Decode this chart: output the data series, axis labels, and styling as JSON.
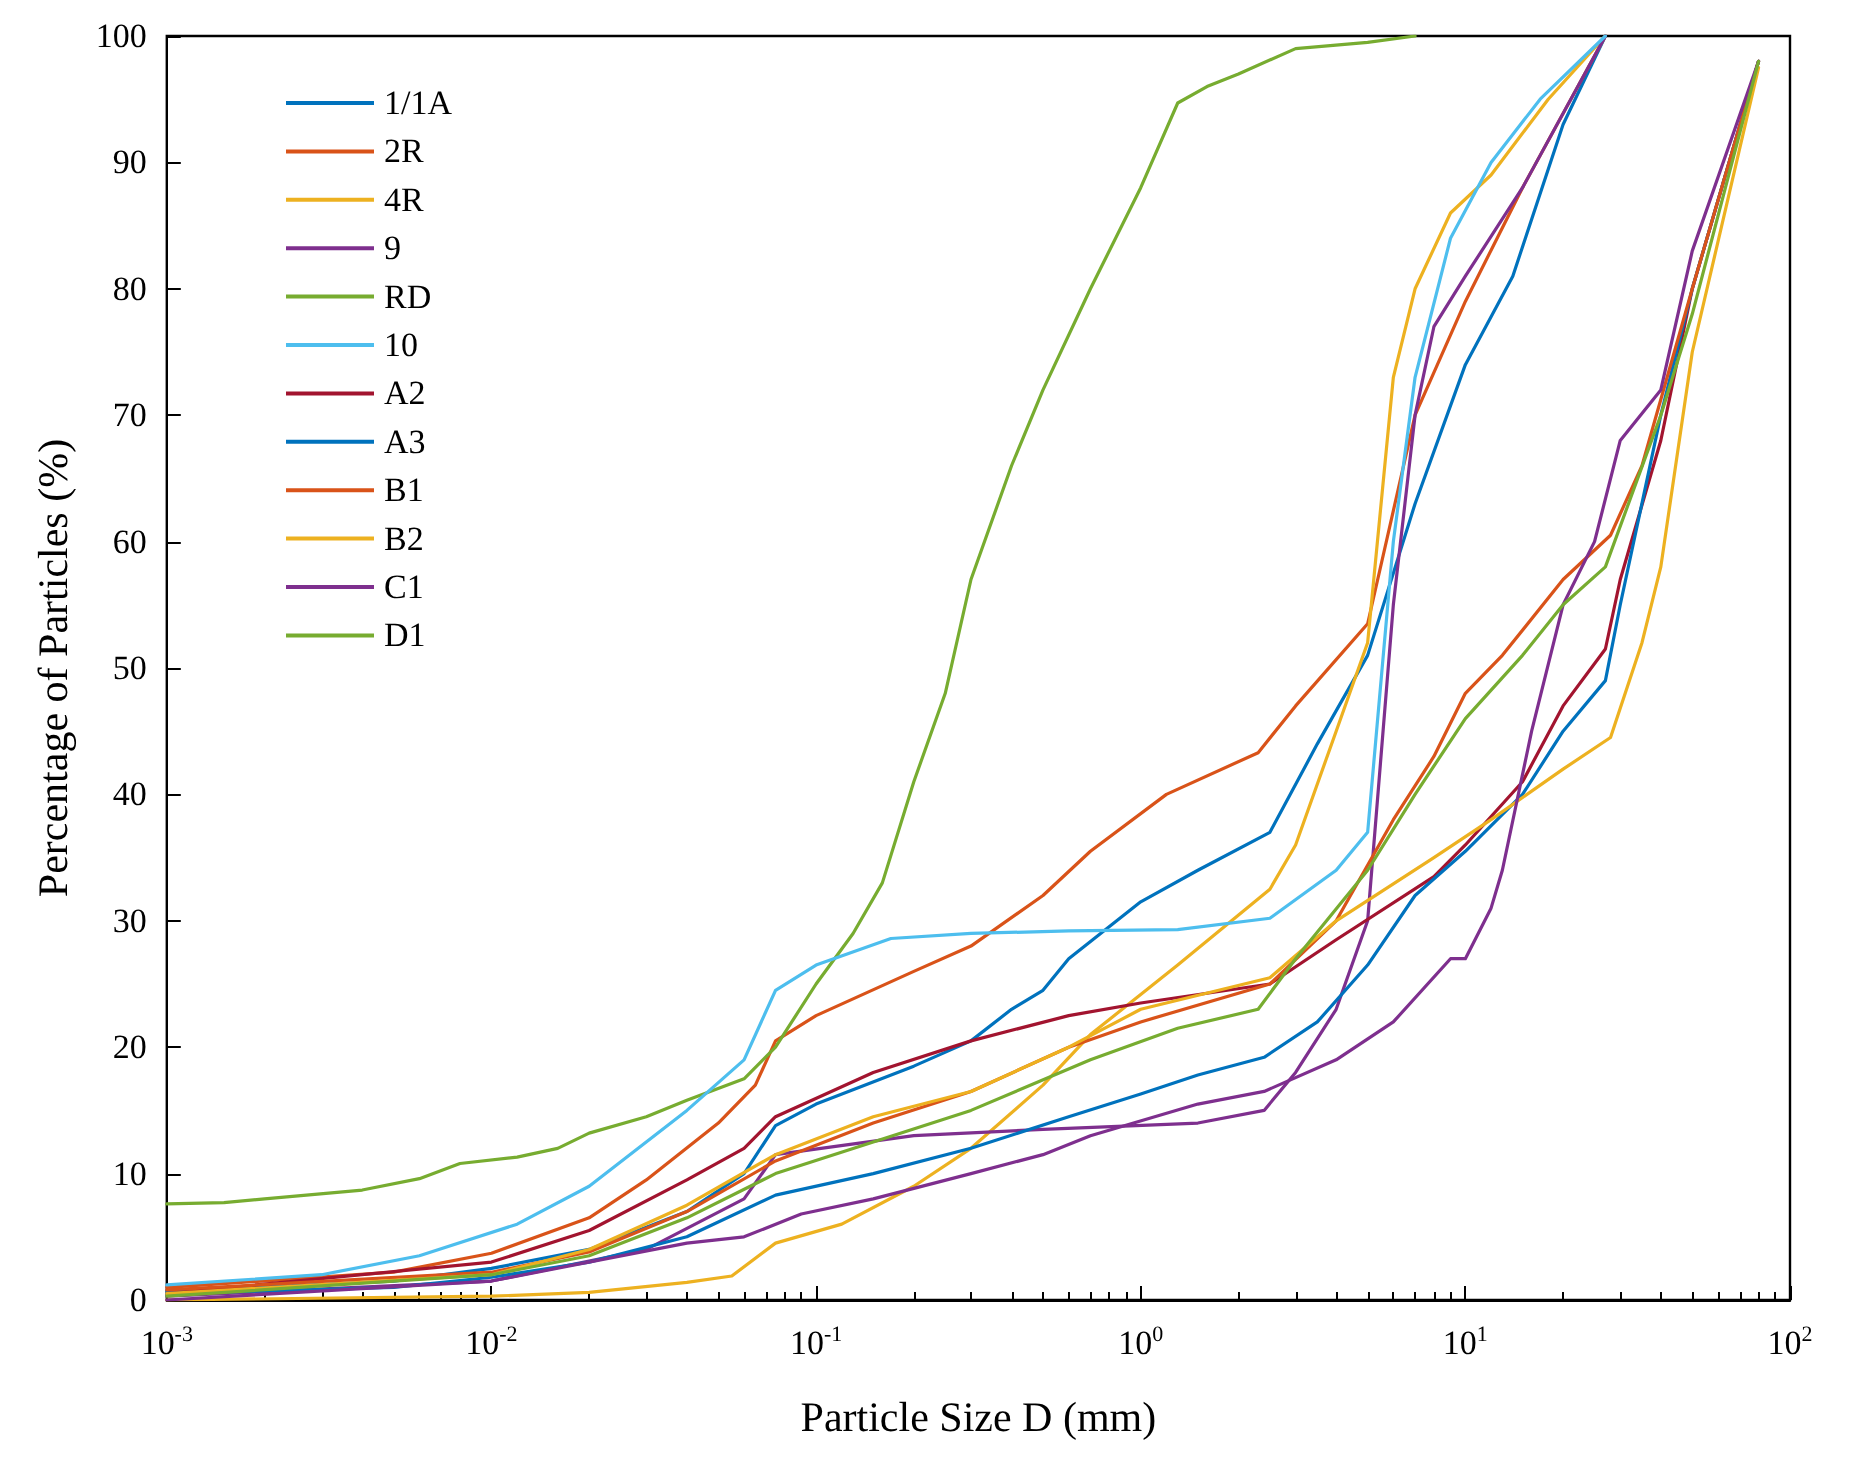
{
  "chart_data": {
    "type": "line",
    "xlabel": "Particle Size D (mm)",
    "ylabel": "Percentage of Particles (%)",
    "log": "x",
    "grid": false,
    "legend": "top left",
    "marker": "none",
    "line_style": "solid",
    "xlim": [
      0.001,
      100
    ],
    "ylim": [
      0,
      100
    ],
    "xticks": [
      {
        "value": 0.001,
        "label": "10$^{-3}$"
      },
      {
        "value": 0.01,
        "label": "10$^{-2}$"
      },
      {
        "value": 0.1,
        "label": "10$^{-1}$"
      },
      {
        "value": 1,
        "label": "10$^{0}$"
      },
      {
        "value": 10,
        "label": "10$^{1}$"
      },
      {
        "value": 100,
        "label": "10$^{2}$"
      }
    ],
    "yticks": [
      0,
      10,
      20,
      30,
      40,
      50,
      60,
      70,
      80,
      90,
      100
    ],
    "series": [
      {
        "name": "1/1A",
        "color": "#0072bd",
        "x": [
          0.001,
          0.005,
          0.01,
          0.02,
          0.04,
          0.06,
          0.075,
          0.1,
          0.2,
          0.3,
          0.4,
          0.5,
          0.6,
          1,
          1.5,
          2.5,
          3.5,
          5,
          7,
          10,
          14,
          20,
          27
        ],
        "values": [
          0.7,
          1.5,
          2.5,
          4,
          7,
          10,
          13.8,
          15.5,
          18.5,
          20.5,
          23,
          24.5,
          27,
          31.5,
          34,
          37,
          44,
          51,
          63,
          74,
          81,
          93,
          100
        ]
      },
      {
        "name": "2R",
        "color": "#d95319",
        "x": [
          0.001,
          0.005,
          0.01,
          0.02,
          0.03,
          0.05,
          0.065,
          0.075,
          0.1,
          0.2,
          0.3,
          0.5,
          0.7,
          1.2,
          2.3,
          3,
          5,
          7,
          10,
          15,
          27
        ],
        "values": [
          1,
          2.2,
          3.7,
          6.5,
          9.5,
          14,
          17,
          20.5,
          22.5,
          26,
          28,
          32,
          35.5,
          40,
          43.3,
          47,
          53.5,
          70,
          79,
          88,
          100
        ]
      },
      {
        "name": "4R",
        "color": "#edb120",
        "x": [
          0.001,
          0.01,
          0.02,
          0.04,
          0.055,
          0.075,
          0.12,
          0.2,
          0.3,
          0.5,
          0.7,
          1.3,
          2.5,
          3,
          4,
          5,
          6,
          7,
          9,
          12,
          18,
          27
        ],
        "values": [
          0,
          0.3,
          0.6,
          1.4,
          1.9,
          4.5,
          6,
          9,
          12,
          17,
          21,
          26.5,
          32.5,
          36,
          45,
          52,
          73,
          80,
          86,
          89,
          95,
          100
        ]
      },
      {
        "name": "9",
        "color": "#7e2f8e",
        "x": [
          0.001,
          0.01,
          0.03,
          0.06,
          0.075,
          0.2,
          0.5,
          1.5,
          2.4,
          3,
          4,
          5,
          6,
          7,
          8,
          10,
          15,
          27
        ],
        "values": [
          0.3,
          1.5,
          4,
          8,
          11.5,
          13,
          13.5,
          14,
          15,
          18,
          23,
          30,
          55,
          70,
          77,
          81,
          88,
          100
        ]
      },
      {
        "name": "RD",
        "color": "#77ac30",
        "x": [
          0.001,
          0.0015,
          0.002,
          0.004,
          0.006,
          0.008,
          0.012,
          0.016,
          0.02,
          0.03,
          0.04,
          0.06,
          0.075,
          0.1,
          0.13,
          0.16,
          0.2,
          0.25,
          0.3,
          0.4,
          0.5,
          0.7,
          1,
          1.3,
          1.6,
          2,
          3,
          5,
          7
        ],
        "values": [
          7.6,
          7.7,
          8,
          8.7,
          9.6,
          10.8,
          11.3,
          12,
          13.2,
          14.5,
          15.8,
          17.5,
          20,
          25,
          29,
          33,
          41,
          48,
          57,
          66,
          72,
          80,
          88,
          94.7,
          96,
          97,
          99,
          99.5,
          100
        ]
      },
      {
        "name": "10",
        "color": "#4dbeee",
        "x": [
          0.001,
          0.003,
          0.006,
          0.012,
          0.02,
          0.04,
          0.06,
          0.075,
          0.1,
          0.17,
          0.3,
          0.6,
          1.3,
          2.5,
          4,
          5,
          6,
          7,
          9,
          12,
          17,
          27
        ],
        "values": [
          1.2,
          2,
          3.5,
          6,
          9,
          15,
          19,
          24.5,
          26.5,
          28.6,
          29,
          29.2,
          29.3,
          30.2,
          34,
          37,
          60,
          73,
          84,
          90,
          95,
          100
        ]
      },
      {
        "name": "A2",
        "color": "#a2142f",
        "x": [
          0.001,
          0.01,
          0.02,
          0.04,
          0.06,
          0.075,
          0.15,
          0.3,
          0.6,
          1,
          2.5,
          4,
          8,
          10,
          15,
          20,
          27,
          30,
          40,
          50,
          80
        ],
        "values": [
          0.5,
          3,
          5.5,
          9.5,
          12,
          14.5,
          18,
          20.5,
          22.5,
          23.5,
          25,
          28.5,
          33.5,
          36,
          41,
          47,
          51.5,
          57,
          68,
          80,
          98
        ]
      },
      {
        "name": "A3",
        "color": "#0072bd",
        "x": [
          0.001,
          0.005,
          0.01,
          0.02,
          0.04,
          0.075,
          0.15,
          0.3,
          0.6,
          1,
          1.5,
          2.4,
          3.5,
          5,
          7,
          10,
          15,
          20,
          27,
          30,
          40,
          50,
          80
        ],
        "values": [
          0.5,
          1,
          1.8,
          3,
          5,
          8.3,
          10,
          12,
          14.5,
          16.3,
          17.8,
          19.2,
          22,
          26.5,
          32,
          35.5,
          40,
          45,
          49,
          55,
          70,
          80,
          98
        ]
      },
      {
        "name": "B1",
        "color": "#d95319",
        "x": [
          0.001,
          0.01,
          0.02,
          0.04,
          0.075,
          0.15,
          0.3,
          0.6,
          1,
          2.5,
          4,
          6,
          8,
          10,
          13,
          20,
          28,
          35,
          50,
          80
        ],
        "values": [
          0.8,
          2.2,
          3.8,
          7,
          11,
          14,
          16.5,
          20,
          22,
          25,
          30,
          38,
          43,
          48,
          51,
          57,
          60.5,
          66,
          80,
          98
        ]
      },
      {
        "name": "B2",
        "color": "#edb120",
        "x": [
          0.001,
          0.01,
          0.02,
          0.04,
          0.075,
          0.15,
          0.3,
          0.6,
          1,
          2.5,
          4,
          8,
          12,
          20,
          28,
          35,
          40,
          50,
          80
        ],
        "values": [
          0.5,
          2,
          4,
          7.5,
          11.5,
          14.5,
          16.5,
          20,
          23,
          25.5,
          30,
          35,
          38,
          42,
          44.5,
          52,
          58,
          75,
          97.5
        ]
      },
      {
        "name": "C1",
        "color": "#7e2f8e",
        "x": [
          0.001,
          0.01,
          0.04,
          0.06,
          0.09,
          0.15,
          0.3,
          0.5,
          0.7,
          1.5,
          2.4,
          4,
          6,
          9,
          10,
          12,
          13,
          16,
          20,
          25,
          30,
          40,
          50,
          80
        ],
        "values": [
          0,
          1.5,
          4.5,
          5,
          6.8,
          8,
          10,
          11.5,
          13,
          15.5,
          16.5,
          19,
          22,
          27,
          27,
          31,
          34,
          45,
          55,
          60,
          68,
          72,
          83,
          98
        ]
      },
      {
        "name": "D1",
        "color": "#77ac30",
        "x": [
          0.001,
          0.01,
          0.02,
          0.04,
          0.075,
          0.15,
          0.3,
          0.7,
          1.3,
          2.3,
          3,
          5,
          7,
          10,
          15,
          20,
          27,
          40,
          50,
          80
        ],
        "values": [
          0.3,
          2,
          3.5,
          6.5,
          10,
          12.5,
          15,
          19,
          21.5,
          23,
          27,
          34,
          40,
          46,
          51,
          55,
          58,
          70,
          78,
          98
        ]
      }
    ]
  }
}
